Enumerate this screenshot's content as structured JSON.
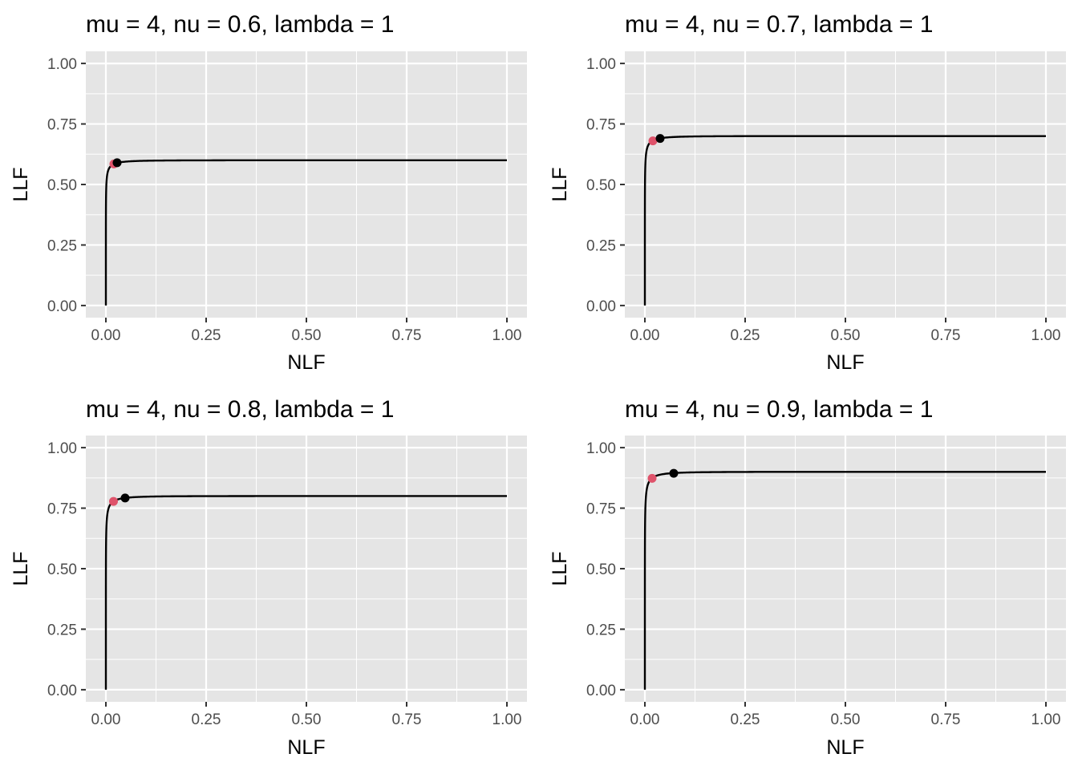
{
  "figure": {
    "background": "#ffffff",
    "panel_background": "#e5e5e5",
    "grid_color": "#ffffff",
    "tick_color": "#333333",
    "tick_label_color": "#4d4d4d",
    "curve_color": "#000000",
    "point_colors": [
      "#df536b",
      "#000000"
    ]
  },
  "chart_data": [
    {
      "type": "line",
      "title": "mu = 4, nu = 0.6, lambda = 1",
      "xlabel": "NLF",
      "ylabel": "LLF",
      "xlim": [
        0,
        1
      ],
      "ylim": [
        0,
        1
      ],
      "grid": true,
      "x_ticks": [
        "0.00",
        "0.25",
        "0.50",
        "0.75",
        "1.00"
      ],
      "y_ticks": [
        "0.00",
        "0.25",
        "0.50",
        "0.75",
        "1.00"
      ],
      "curve": {
        "mu": 4,
        "nu": 0.6,
        "lambda": 1
      },
      "points": [
        {
          "x": 0.02,
          "y": 0.585,
          "color": "#df536b"
        },
        {
          "x": 0.028,
          "y": 0.59,
          "color": "#000000"
        }
      ]
    },
    {
      "type": "line",
      "title": "mu = 4, nu = 0.7, lambda = 1",
      "xlabel": "NLF",
      "ylabel": "LLF",
      "xlim": [
        0,
        1
      ],
      "ylim": [
        0,
        1
      ],
      "grid": true,
      "x_ticks": [
        "0.00",
        "0.25",
        "0.50",
        "0.75",
        "1.00"
      ],
      "y_ticks": [
        "0.00",
        "0.25",
        "0.50",
        "0.75",
        "1.00"
      ],
      "curve": {
        "mu": 4,
        "nu": 0.7,
        "lambda": 1
      },
      "points": [
        {
          "x": 0.02,
          "y": 0.68,
          "color": "#df536b"
        },
        {
          "x": 0.038,
          "y": 0.69,
          "color": "#000000"
        }
      ]
    },
    {
      "type": "line",
      "title": "mu = 4, nu = 0.8, lambda = 1",
      "xlabel": "NLF",
      "ylabel": "LLF",
      "xlim": [
        0,
        1
      ],
      "ylim": [
        0,
        1
      ],
      "grid": true,
      "x_ticks": [
        "0.00",
        "0.25",
        "0.50",
        "0.75",
        "1.00"
      ],
      "y_ticks": [
        "0.00",
        "0.25",
        "0.50",
        "0.75",
        "1.00"
      ],
      "curve": {
        "mu": 4,
        "nu": 0.8,
        "lambda": 1
      },
      "points": [
        {
          "x": 0.019,
          "y": 0.778,
          "color": "#df536b"
        },
        {
          "x": 0.048,
          "y": 0.792,
          "color": "#000000"
        }
      ]
    },
    {
      "type": "line",
      "title": "mu = 4, nu = 0.9, lambda = 1",
      "xlabel": "NLF",
      "ylabel": "LLF",
      "xlim": [
        0,
        1
      ],
      "ylim": [
        0,
        1
      ],
      "grid": true,
      "x_ticks": [
        "0.00",
        "0.25",
        "0.50",
        "0.75",
        "1.00"
      ],
      "y_ticks": [
        "0.00",
        "0.25",
        "0.50",
        "0.75",
        "1.00"
      ],
      "curve": {
        "mu": 4,
        "nu": 0.9,
        "lambda": 1
      },
      "points": [
        {
          "x": 0.018,
          "y": 0.873,
          "color": "#df536b"
        },
        {
          "x": 0.072,
          "y": 0.894,
          "color": "#000000"
        }
      ]
    }
  ]
}
